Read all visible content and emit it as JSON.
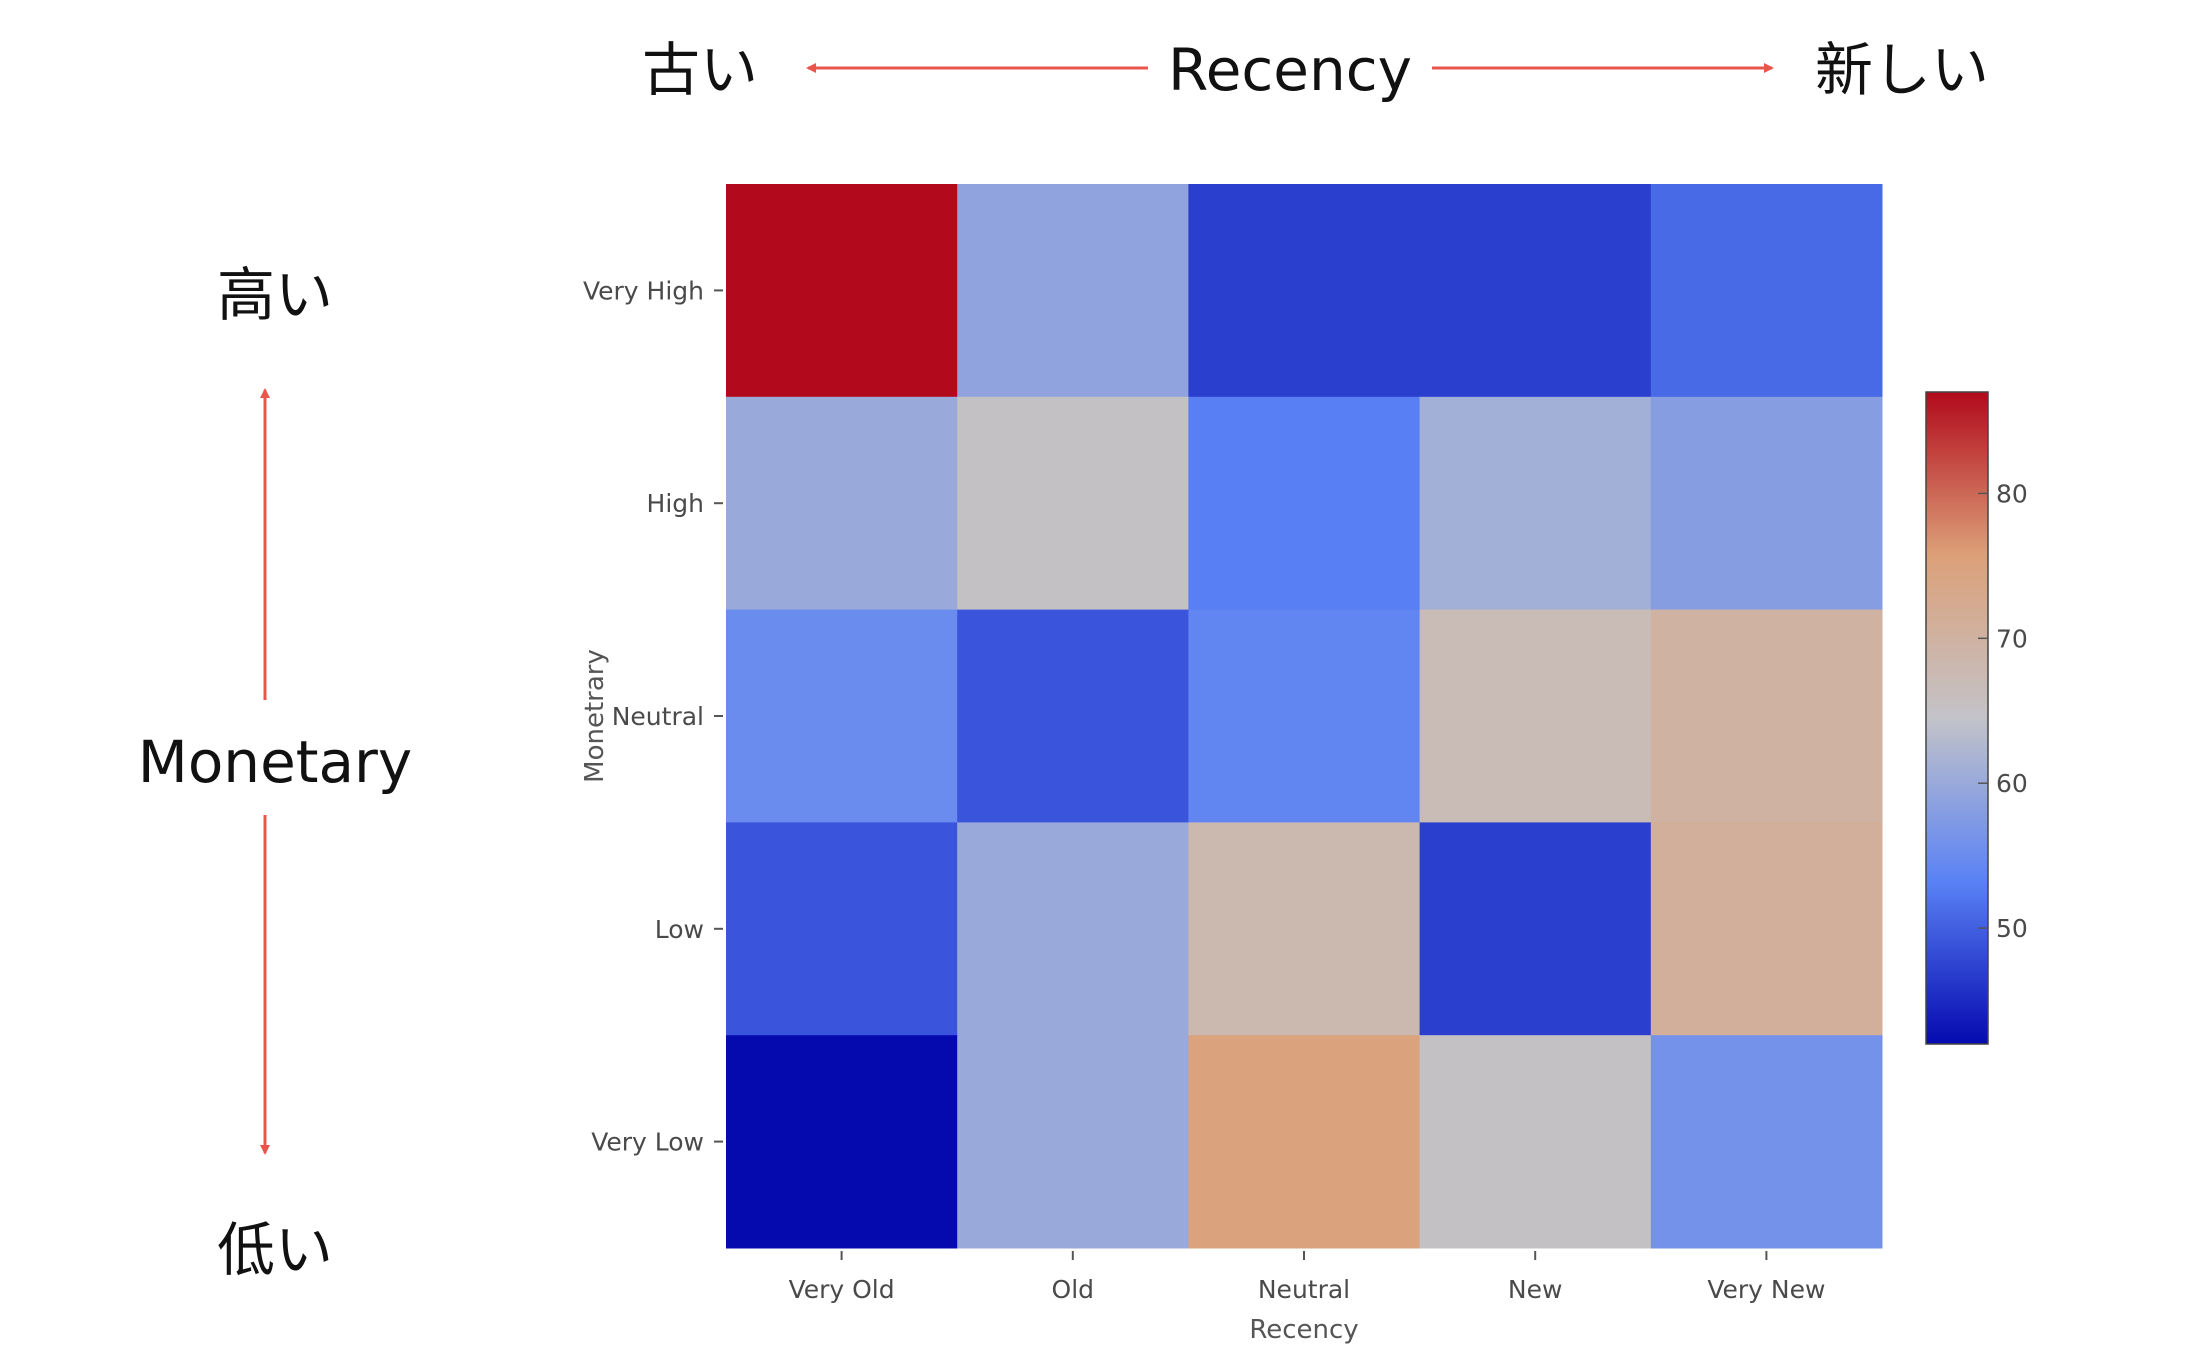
{
  "annotations": {
    "recency_center": "Recency",
    "recency_left": "古い",
    "recency_right": "新しい",
    "monetary_center": "Monetary",
    "monetary_top": "高い",
    "monetary_bottom": "低い",
    "arrow_color": "#E8564B"
  },
  "chart_data": {
    "type": "heatmap",
    "x_categories": [
      "Very Old",
      "Old",
      "Neutral",
      "New",
      "Very New"
    ],
    "y_categories": [
      "Very High",
      "High",
      "Neutral",
      "Low",
      "Very Low"
    ],
    "values": [
      [
        87,
        59,
        47,
        47,
        51
      ],
      [
        60,
        65,
        53,
        61,
        58
      ],
      [
        55,
        49,
        54,
        67,
        70
      ],
      [
        49,
        60,
        68,
        47,
        71
      ],
      [
        42,
        60,
        75,
        65,
        56
      ]
    ],
    "xlabel": "Recency",
    "ylabel": "Monetrary",
    "colorscale": "coolwarm",
    "zmin": 42,
    "zmax": 87,
    "colorbar_ticks": [
      50,
      60,
      70,
      80
    ],
    "colorbar_tick_labels": [
      "50",
      "60",
      "70",
      "80"
    ],
    "grid": false
  }
}
